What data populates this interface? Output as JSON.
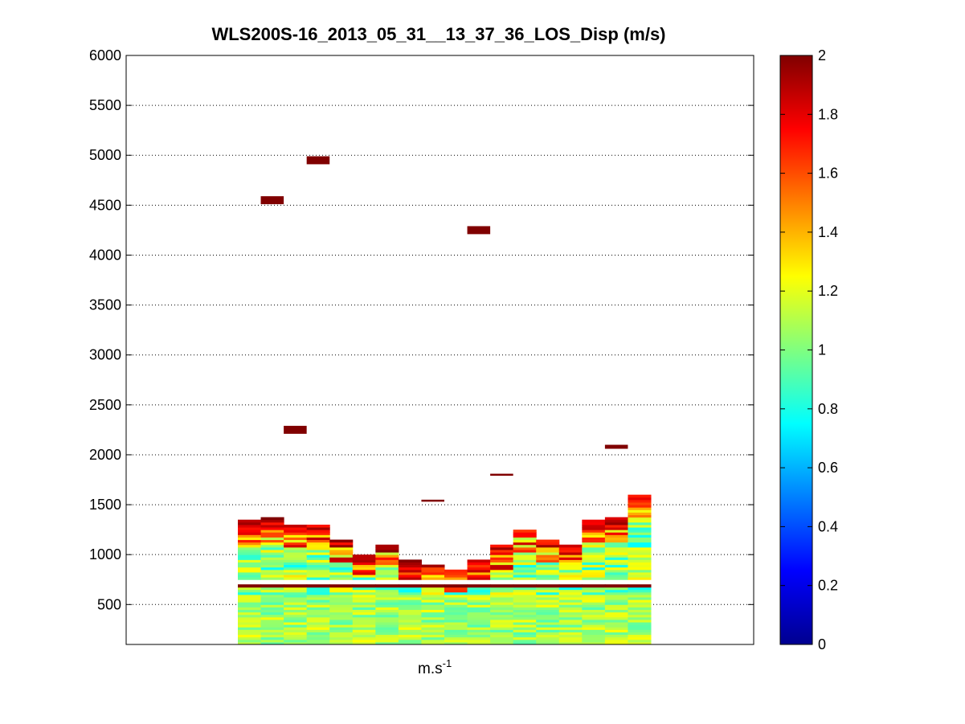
{
  "chart_data": {
    "type": "heatmap",
    "title": "WLS200S-16_2013_05_31__13_37_36_LOS_Disp (m/s)",
    "xlabel_base": "m.s",
    "xlabel_exp": "-1",
    "ylabel": "",
    "ylim": [
      100,
      6000
    ],
    "yticks": [
      500,
      1000,
      1500,
      2000,
      2500,
      3000,
      3500,
      4000,
      4500,
      5000,
      5500,
      6000
    ],
    "grid": "horizontal-dotted",
    "colormap": "jet",
    "clim": [
      0,
      2
    ],
    "colorbar_ticks": [
      0,
      0.2,
      0.4,
      0.6,
      0.8,
      1,
      1.2,
      1.4,
      1.6,
      1.8,
      2
    ],
    "colorbar_placement": "right",
    "columns": 18,
    "bin_height_m": 25,
    "high_cells": [
      {
        "col": 1,
        "z0": 4510,
        "z1": 4590,
        "v": 2
      },
      {
        "col": 3,
        "z0": 4910,
        "z1": 4990,
        "v": 2
      },
      {
        "col": 10,
        "z0": 4210,
        "z1": 4290,
        "v": 2
      },
      {
        "col": 2,
        "z0": 2210,
        "z1": 2290,
        "v": 2
      },
      {
        "col": 16,
        "z0": 2060,
        "z1": 2100,
        "v": 2
      },
      {
        "col": 8,
        "z0": 1530,
        "z1": 1550,
        "v": 2
      },
      {
        "col": 11,
        "z0": 1790,
        "z1": 1810,
        "v": 2
      }
    ],
    "profile_top_m": [
      1330,
      1370,
      1300,
      1300,
      1150,
      1000,
      1100,
      950,
      900,
      850,
      930,
      1080,
      1250,
      1150,
      1080,
      1350,
      1370,
      1590
    ],
    "gap_rows_m": [
      680,
      700,
      720
    ],
    "dark_line_m": 690
  }
}
